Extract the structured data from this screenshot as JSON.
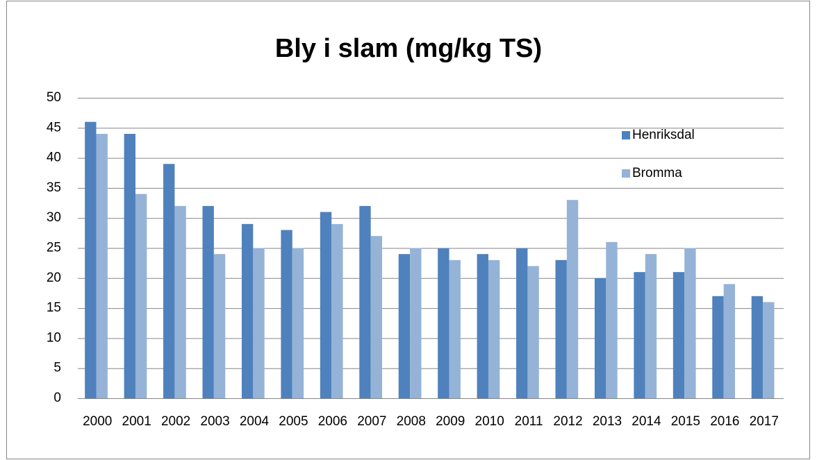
{
  "chart_data": {
    "type": "bar",
    "title": "Bly i slam (mg/kg TS)",
    "categories": [
      "2000",
      "2001",
      "2002",
      "2003",
      "2004",
      "2005",
      "2006",
      "2007",
      "2008",
      "2009",
      "2010",
      "2011",
      "2012",
      "2013",
      "2014",
      "2015",
      "2016",
      "2017"
    ],
    "series": [
      {
        "name": "Henriksdal",
        "color": "#4f81bd",
        "values": [
          46,
          44,
          39,
          32,
          29,
          28,
          31,
          32,
          24,
          25,
          24,
          25,
          23,
          20,
          21,
          21,
          17,
          17
        ]
      },
      {
        "name": "Bromma",
        "color": "#95b3d7",
        "values": [
          44,
          34,
          32,
          24,
          25,
          25,
          29,
          27,
          25,
          23,
          23,
          22,
          33,
          26,
          24,
          25,
          19,
          16
        ]
      }
    ],
    "ylim": [
      0,
      50
    ],
    "yticks": [
      0,
      5,
      10,
      15,
      20,
      25,
      30,
      35,
      40,
      45,
      50
    ],
    "grid": true,
    "legend": "right"
  }
}
